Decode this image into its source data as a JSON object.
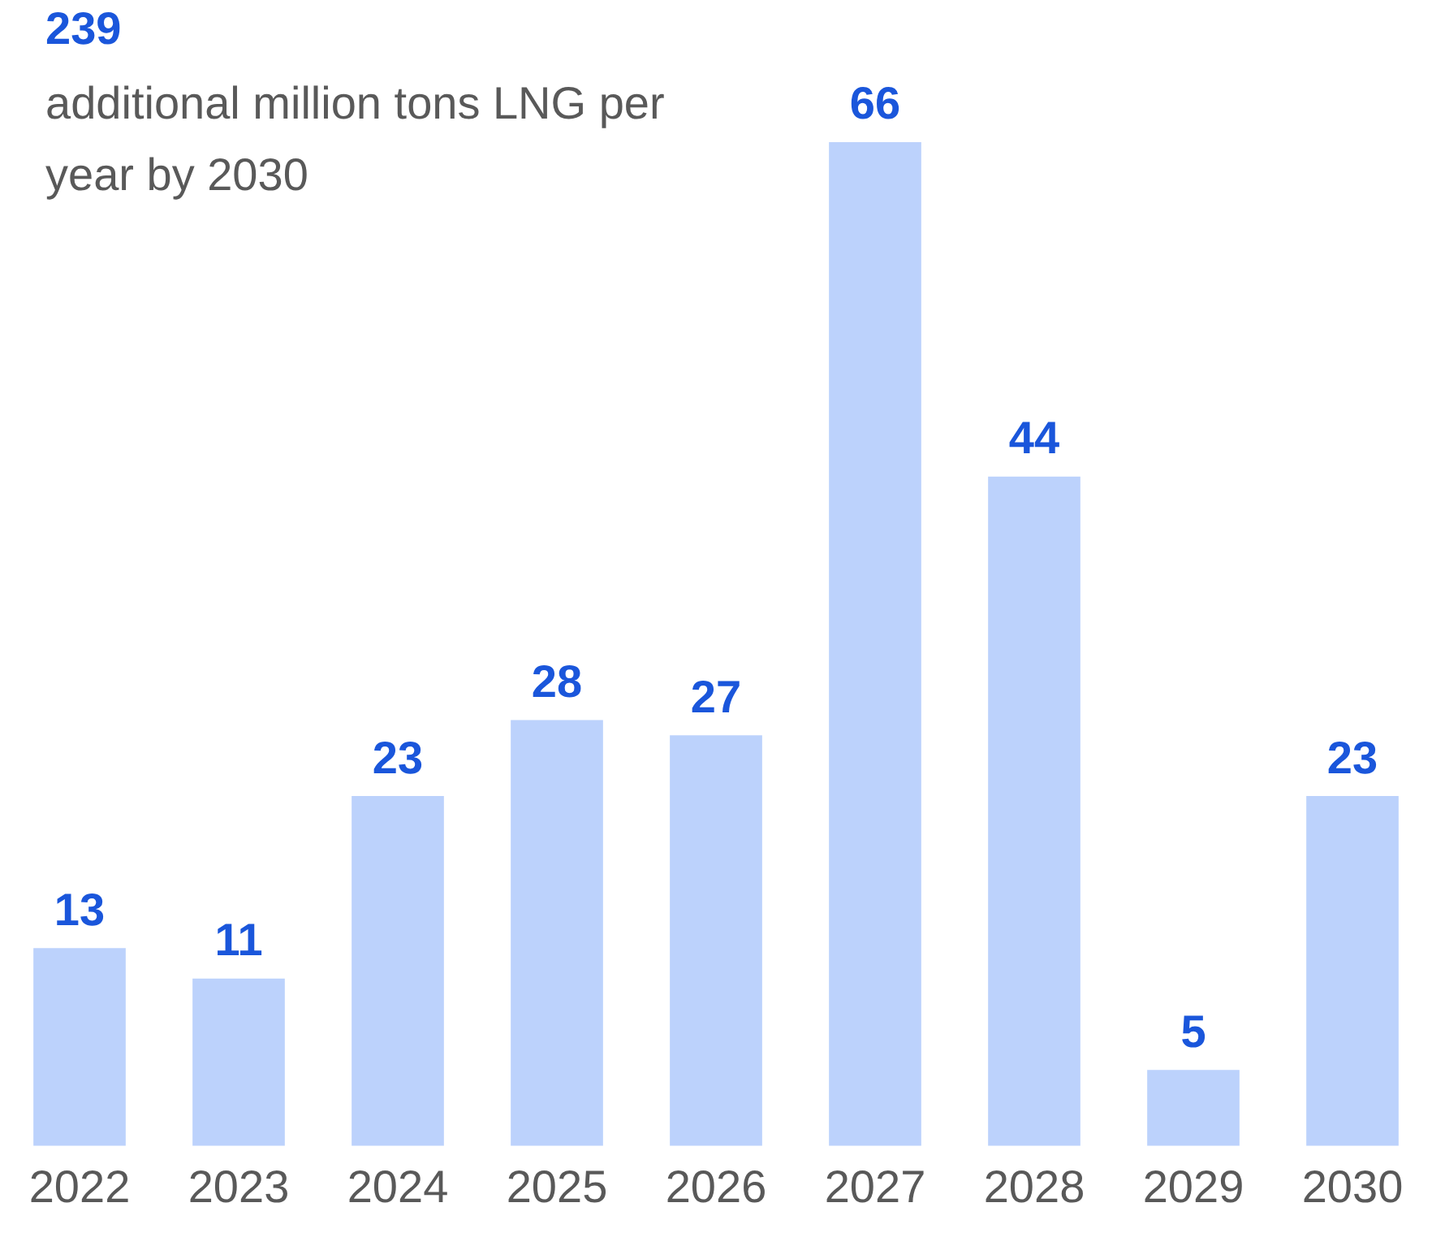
{
  "chart_data": {
    "type": "bar",
    "title": "239",
    "subtitle": "additional million tons LNG per year by 2030",
    "categories": [
      "2022",
      "2023",
      "2024",
      "2025",
      "2026",
      "2027",
      "2028",
      "2029",
      "2030"
    ],
    "values": [
      13,
      11,
      23,
      28,
      27,
      66,
      44,
      5,
      23
    ],
    "color": "#bcd2fc",
    "data_labels": true,
    "grid": false,
    "legend": false
  }
}
